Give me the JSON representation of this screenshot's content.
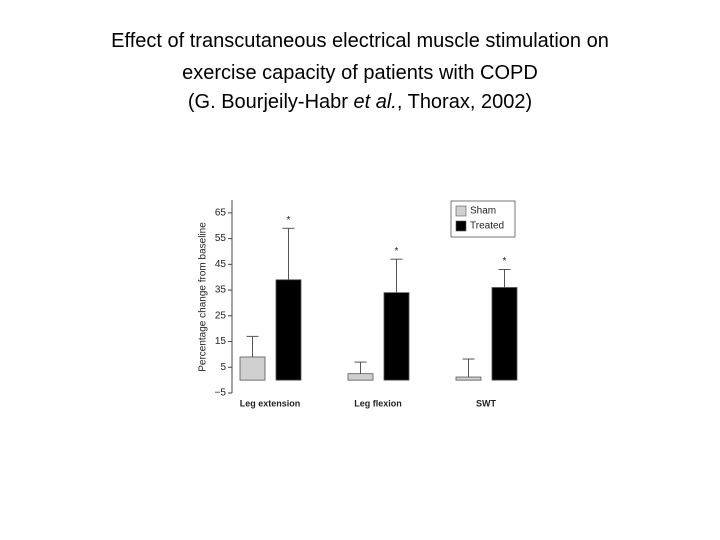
{
  "title_lines": [
    "Effect of transcutaneous electrical muscle stimulation on",
    "exercise capacity of patients with COPD"
  ],
  "citation": {
    "before": "(G. Bourjeily-Habr ",
    "italic": "et al.",
    "after": ", Thorax, 2002)"
  },
  "chart_data": {
    "type": "bar",
    "ylabel": "Percentage change from baseline",
    "categories": [
      "Leg extension",
      "Leg flexion",
      "SWT"
    ],
    "series": [
      {
        "name": "Sham",
        "color": "#d0d0d0",
        "values": [
          9,
          2.5,
          1.2
        ],
        "errors": [
          8,
          4.5,
          7
        ]
      },
      {
        "name": "Treated",
        "color": "#000000",
        "values": [
          39,
          34,
          36
        ],
        "errors": [
          20,
          13,
          7
        ],
        "annotations": [
          "*",
          "*",
          "*"
        ]
      }
    ],
    "ylim": [
      -5,
      70
    ],
    "yticks": [
      {
        "value": -5,
        "label": "−5"
      },
      5,
      15,
      25,
      35,
      45,
      55,
      65
    ],
    "legend": "upper right"
  }
}
